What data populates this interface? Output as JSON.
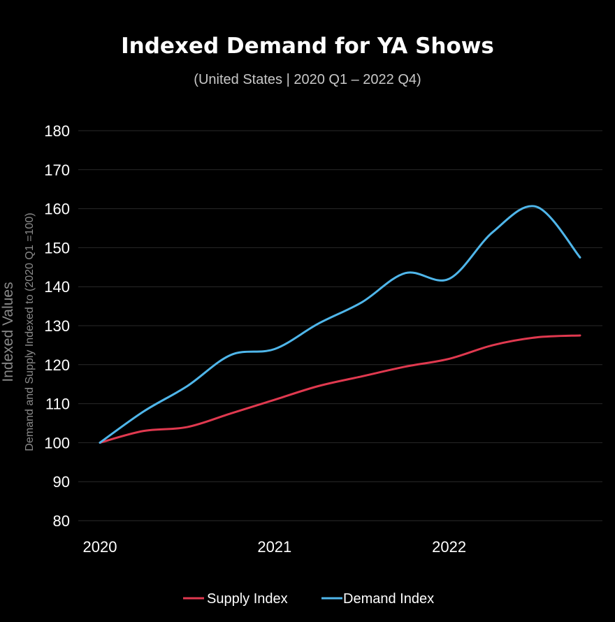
{
  "chart_data": {
    "type": "line",
    "title": "Indexed Demand for YA Shows",
    "subtitle": "(United States | 2020 Q1 – 2022 Q4)",
    "ylabel": "Indexed Values",
    "ylabel_sub": "Demand and Supply Indexed to (2020 Q1 =100)",
    "ylim": [
      80,
      180
    ],
    "yticks": [
      80,
      90,
      100,
      110,
      120,
      130,
      140,
      150,
      160,
      170,
      180
    ],
    "xlim": [
      2020,
      2022.75
    ],
    "xticks": [
      "2020",
      "2021",
      "2022"
    ],
    "grid": true,
    "legend_position": "bottom",
    "series": [
      {
        "name": "Supply Index",
        "color": "#e0394f",
        "x": [
          2020,
          2020.25,
          2020.5,
          2020.75,
          2021,
          2021.25,
          2021.5,
          2021.75,
          2022,
          2022.25,
          2022.5,
          2022.75
        ],
        "values": [
          100,
          103,
          104,
          107.5,
          111,
          114.5,
          117,
          119.5,
          121.5,
          125,
          127,
          127.5
        ]
      },
      {
        "name": "Demand Index",
        "color": "#4fb6ea",
        "x": [
          2020,
          2020.25,
          2020.5,
          2020.75,
          2021,
          2021.25,
          2021.5,
          2021.75,
          2022,
          2022.25,
          2022.5,
          2022.75
        ],
        "values": [
          100,
          108,
          114.5,
          122.5,
          124,
          130.5,
          136,
          143.5,
          142,
          154,
          160.5,
          147.5
        ]
      }
    ]
  }
}
